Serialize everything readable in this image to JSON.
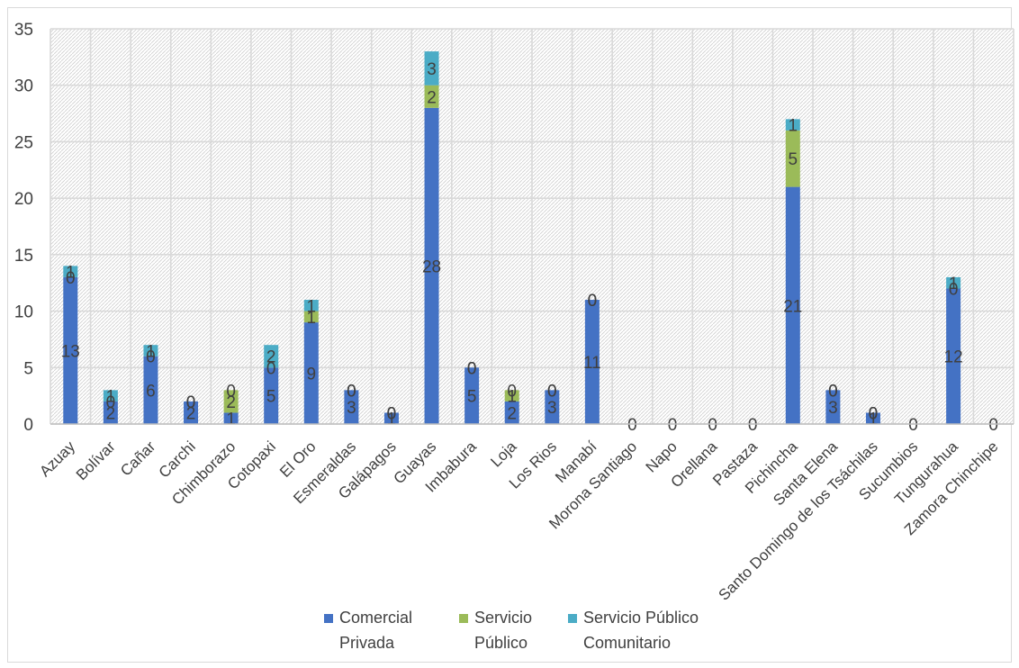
{
  "chart_data": {
    "type": "bar",
    "stacked": true,
    "title": "",
    "xlabel": "",
    "ylabel": "",
    "ylim": [
      0,
      35
    ],
    "yticks": [
      0,
      5,
      10,
      15,
      20,
      25,
      30,
      35
    ],
    "grid": true,
    "legend_position": "bottom",
    "categories": [
      "Azuay",
      "Bolívar",
      "Cañar",
      "Carchi",
      "Chimborazo",
      "Cotopaxi",
      "El Oro",
      "Esmeraldas",
      "Galápagos",
      "Guayas",
      "Imbabura",
      "Loja",
      "Los Rios",
      "Manabí",
      "Morona Santiago",
      "Napo",
      "Orellana",
      "Pastaza",
      "Pichincha",
      "Santa Elena",
      "Santo Domingo de los Tsáchilas",
      "Sucumbios",
      "Tungurahua",
      "Zamora Chinchipe"
    ],
    "series": [
      {
        "name": "Comercial Privada",
        "legend_lines": [
          "Comercial",
          "Privada"
        ],
        "color": "#4472c4",
        "values": [
          13,
          2,
          6,
          2,
          1,
          5,
          9,
          3,
          1,
          28,
          5,
          2,
          3,
          11,
          0,
          0,
          0,
          0,
          21,
          3,
          1,
          0,
          12,
          0
        ]
      },
      {
        "name": "Servicio Público",
        "legend_lines": [
          "Servicio",
          "Público"
        ],
        "color": "#9bbb59",
        "values": [
          0,
          0,
          0,
          0,
          2,
          0,
          1,
          0,
          0,
          2,
          0,
          1,
          0,
          0,
          0,
          0,
          0,
          0,
          5,
          0,
          0,
          0,
          0,
          0
        ]
      },
      {
        "name": "Servicio Público Comunitario",
        "legend_lines": [
          "Servicio Público",
          "Comunitario"
        ],
        "color": "#4bacc6",
        "values": [
          1,
          1,
          1,
          0,
          0,
          2,
          1,
          0,
          0,
          3,
          0,
          0,
          0,
          0,
          0,
          0,
          0,
          0,
          1,
          0,
          0,
          0,
          1,
          0
        ]
      }
    ]
  }
}
